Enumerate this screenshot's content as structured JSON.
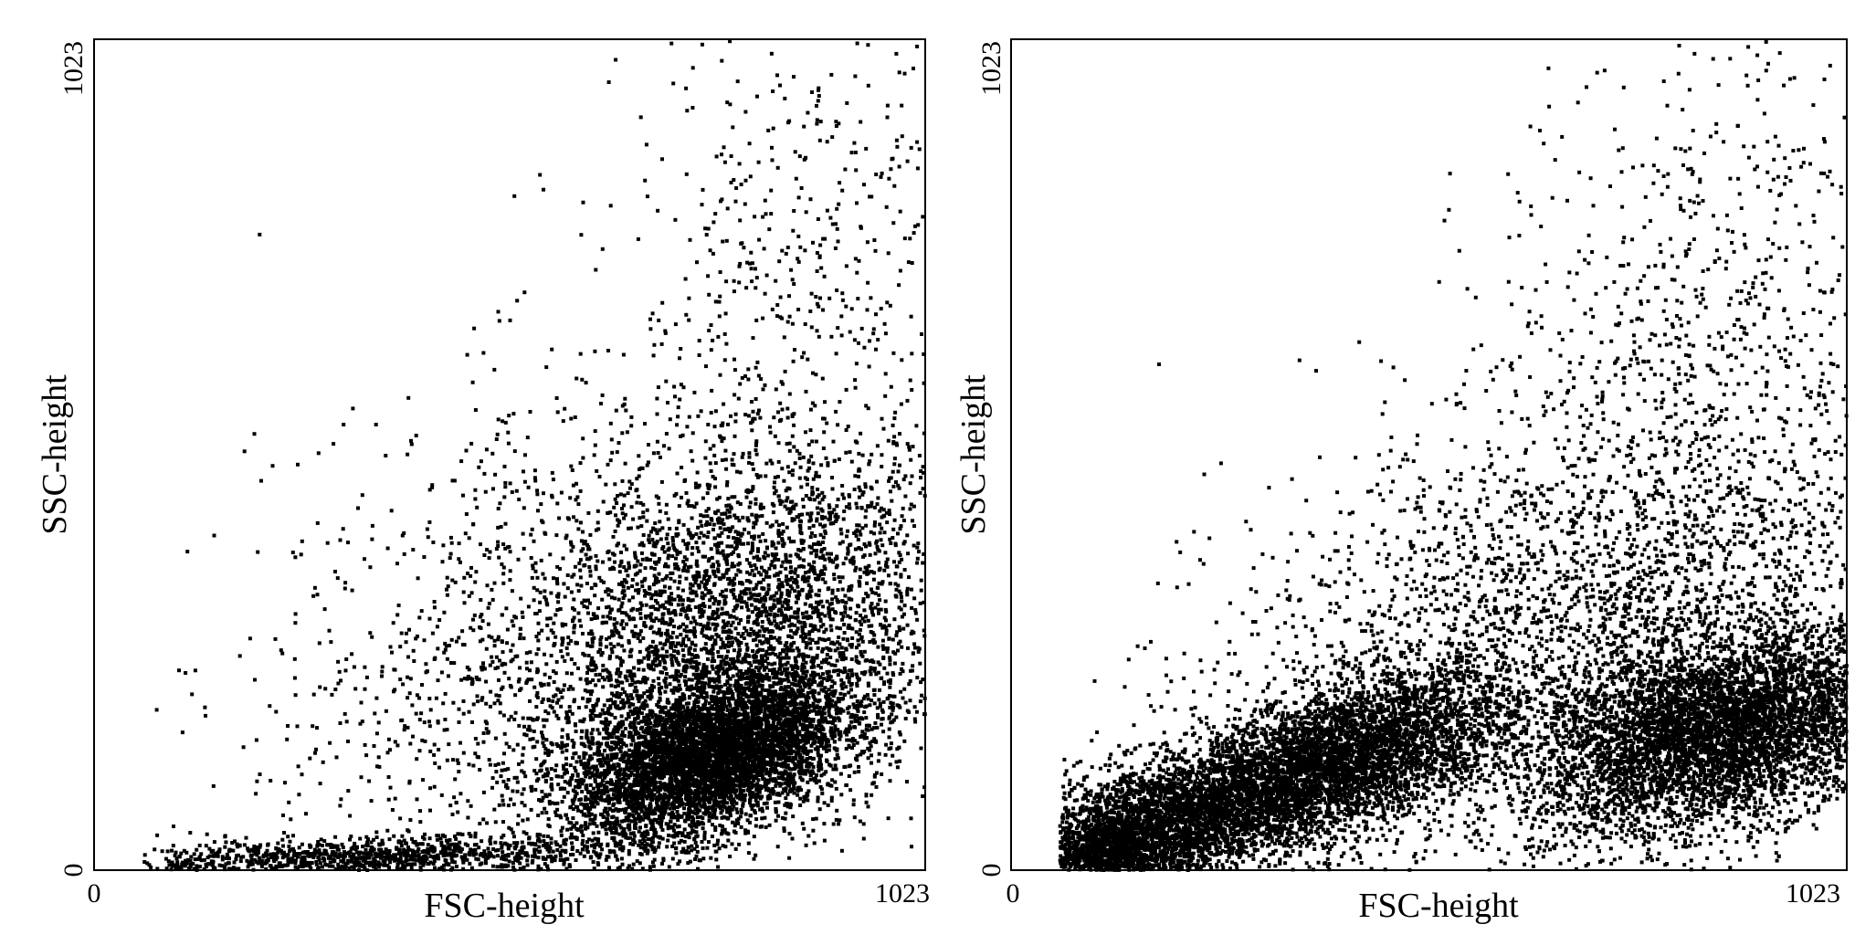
{
  "chart_data": [
    {
      "type": "scatter",
      "title": "",
      "xlabel": "FSC-height",
      "ylabel": "SSC-height",
      "xlim": [
        0,
        1023
      ],
      "ylim": [
        0,
        1023
      ],
      "xticks": [
        "0",
        "1023"
      ],
      "yticks": [
        "0",
        "1023"
      ],
      "grid": false,
      "legend": "none",
      "point_color": "#000000",
      "points_shown": 12000,
      "clusters": [
        {
          "center": [
            760,
            140
          ],
          "spread": [
            85,
            45
          ],
          "weight": 0.42,
          "tilt": 0.55
        },
        {
          "center": [
            800,
            290
          ],
          "spread": [
            140,
            110
          ],
          "weight": 0.3,
          "tilt": 0.45
        },
        {
          "center": [
            600,
            260
          ],
          "spread": [
            200,
            180
          ],
          "weight": 0.14,
          "tilt": 0.6
        },
        {
          "center": [
            330,
            15
          ],
          "spread": [
            170,
            12
          ],
          "weight": 0.1,
          "tilt": 0.05
        },
        {
          "center": [
            880,
            740
          ],
          "spread": [
            110,
            170
          ],
          "weight": 0.04,
          "tilt": 0.2
        }
      ]
    },
    {
      "type": "scatter",
      "title": "",
      "xlabel": "FSC-height",
      "ylabel": "SSC-height",
      "xlim": [
        0,
        1023
      ],
      "ylim": [
        0,
        1023
      ],
      "xticks": [
        "0",
        "1023"
      ],
      "yticks": [
        "0",
        "1023"
      ],
      "grid": false,
      "legend": "none",
      "point_color": "#000000",
      "points_shown": 18000,
      "clusters": [
        {
          "center": [
            200,
            60
          ],
          "spread": [
            120,
            40
          ],
          "weight": 0.26,
          "tilt": 0.55
        },
        {
          "center": [
            420,
            145
          ],
          "spread": [
            95,
            45
          ],
          "weight": 0.18,
          "tilt": 0.5
        },
        {
          "center": [
            870,
            170
          ],
          "spread": [
            110,
            55
          ],
          "weight": 0.3,
          "tilt": 0.4
        },
        {
          "center": [
            700,
            280
          ],
          "spread": [
            220,
            140
          ],
          "weight": 0.18,
          "tilt": 0.4
        },
        {
          "center": [
            850,
            620
          ],
          "spread": [
            130,
            200
          ],
          "weight": 0.05,
          "tilt": 0.2
        },
        {
          "center": [
            120,
            20
          ],
          "spread": [
            30,
            20
          ],
          "weight": 0.03,
          "tilt": 0.0
        }
      ]
    }
  ]
}
